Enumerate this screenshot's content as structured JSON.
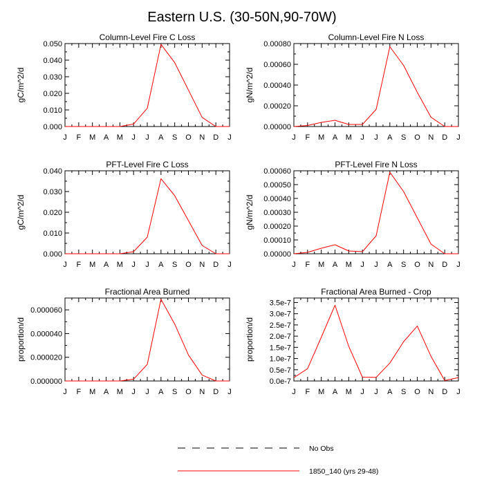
{
  "title": "Eastern U.S. (30-50N,90-70W)",
  "colors": {
    "series": "#ff0000",
    "axis": "#000000",
    "obs": "#000000"
  },
  "legend": {
    "placement": "bottom-center",
    "entries": [
      {
        "label": "No Obs",
        "style": "dashed",
        "color": "#000000"
      },
      {
        "label": "1850_140 (yrs 29-48)",
        "style": "solid",
        "color": "#ff0000"
      }
    ]
  },
  "chart_data": [
    {
      "type": "line",
      "title": "Column-Level Fire C Loss",
      "ylabel": "gC/m^2/d",
      "categories": [
        "J",
        "F",
        "M",
        "A",
        "M",
        "J",
        "J",
        "A",
        "S",
        "O",
        "N",
        "D",
        "J"
      ],
      "ylim": [
        0,
        0.05
      ],
      "yticks": [
        0,
        0.01,
        0.02,
        0.03,
        0.04,
        0.05
      ],
      "yticklabels": [
        "0.000",
        "0.010",
        "0.020",
        "0.030",
        "0.040",
        "0.050"
      ],
      "series": [
        {
          "name": "1850_140 (yrs 29-48)",
          "values": [
            0,
            0,
            0,
            0,
            0,
            0.0015,
            0.011,
            0.0495,
            0.0385,
            0.022,
            0.0055,
            0,
            0
          ]
        }
      ]
    },
    {
      "type": "line",
      "title": "Column-Level Fire N Loss",
      "ylabel": "gN/m^2/d",
      "categories": [
        "J",
        "F",
        "M",
        "A",
        "M",
        "J",
        "J",
        "A",
        "S",
        "O",
        "N",
        "D",
        "J"
      ],
      "ylim": [
        0,
        0.0008
      ],
      "yticks": [
        0,
        0.0002,
        0.0004,
        0.0006,
        0.0008
      ],
      "yticklabels": [
        "0.00000",
        "0.00020",
        "0.00040",
        "0.00060",
        "0.00080"
      ],
      "series": [
        {
          "name": "1850_140 (yrs 29-48)",
          "values": [
            0,
            1e-05,
            4e-05,
            6e-05,
            2e-05,
            2e-05,
            0.000165,
            0.00077,
            0.00059,
            0.00033,
            9e-05,
            0,
            0
          ]
        }
      ]
    },
    {
      "type": "line",
      "title": "PFT-Level Fire C Loss",
      "ylabel": "gC/m^2/d",
      "categories": [
        "J",
        "F",
        "M",
        "A",
        "M",
        "J",
        "J",
        "A",
        "S",
        "O",
        "N",
        "D",
        "J"
      ],
      "ylim": [
        0,
        0.04
      ],
      "yticks": [
        0,
        0.01,
        0.02,
        0.03,
        0.04
      ],
      "yticklabels": [
        "0.000",
        "0.010",
        "0.020",
        "0.030",
        "0.040"
      ],
      "series": [
        {
          "name": "1850_140 (yrs 29-48)",
          "values": [
            0,
            0,
            0,
            0,
            0,
            0.001,
            0.008,
            0.0362,
            0.028,
            0.016,
            0.004,
            0,
            0
          ]
        }
      ]
    },
    {
      "type": "line",
      "title": "PFT-Level Fire N Loss",
      "ylabel": "gN/m^2/d",
      "categories": [
        "J",
        "F",
        "M",
        "A",
        "M",
        "J",
        "J",
        "A",
        "S",
        "O",
        "N",
        "D",
        "J"
      ],
      "ylim": [
        0,
        0.0006
      ],
      "yticks": [
        0,
        0.0001,
        0.0002,
        0.0003,
        0.0004,
        0.0005,
        0.0006
      ],
      "yticklabels": [
        "0.00000",
        "0.00010",
        "0.00020",
        "0.00030",
        "0.00040",
        "0.00050",
        "0.00060"
      ],
      "series": [
        {
          "name": "1850_140 (yrs 29-48)",
          "values": [
            0,
            1e-05,
            4e-05,
            6.5e-05,
            2e-05,
            1.5e-05,
            0.00013,
            0.00059,
            0.00045,
            0.00026,
            7e-05,
            0,
            0
          ]
        }
      ]
    },
    {
      "type": "line",
      "title": "Fractional Area Burned",
      "ylabel": "proportion/d",
      "categories": [
        "J",
        "F",
        "M",
        "A",
        "M",
        "J",
        "J",
        "A",
        "S",
        "O",
        "N",
        "D",
        "J"
      ],
      "ylim": [
        0,
        7e-05
      ],
      "yticks": [
        0,
        2e-05,
        4e-05,
        6e-05
      ],
      "yticklabels": [
        "0.000000",
        "0.000020",
        "0.000040",
        "0.000060"
      ],
      "series": [
        {
          "name": "1850_140 (yrs 29-48)",
          "values": [
            0,
            0,
            0,
            0,
            0,
            1.5e-06,
            1.4e-05,
            6.9e-05,
            4.8e-05,
            2.2e-05,
            5e-06,
            0,
            0
          ]
        }
      ]
    },
    {
      "type": "line",
      "title": "Fractional Area Burned - Crop",
      "ylabel": "proportion/d",
      "categories": [
        "J",
        "F",
        "M",
        "A",
        "M",
        "J",
        "J",
        "A",
        "S",
        "O",
        "N",
        "D",
        "J"
      ],
      "ylim": [
        0,
        3.7e-07
      ],
      "yticks": [
        0,
        5e-08,
        1e-07,
        1.5e-07,
        2e-07,
        2.5e-07,
        3e-07,
        3.5e-07
      ],
      "yticklabels": [
        "0.0e-7",
        "0.5e-7",
        "1.0e-7",
        "1.5e-7",
        "2.0e-7",
        "2.5e-7",
        "3.0e-7",
        "3.5e-7"
      ],
      "series": [
        {
          "name": "1850_140 (yrs 29-48)",
          "values": [
            1.5e-08,
            5.5e-08,
            1.95e-07,
            3.38e-07,
            1.55e-07,
            1.7e-08,
            1.6e-08,
            8e-08,
            1.75e-07,
            2.45e-07,
            1.1e-07,
            2e-09,
            1.5e-08
          ]
        }
      ]
    }
  ]
}
